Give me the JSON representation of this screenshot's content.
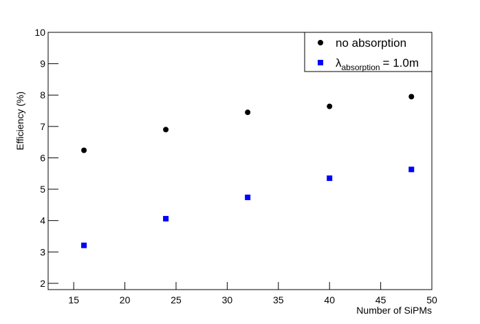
{
  "chart_data": {
    "type": "scatter",
    "x_label": "Number of SiPMs",
    "y_label": "Efficiency (%)",
    "xlim": [
      12.5,
      50
    ],
    "ylim": [
      1.8,
      10
    ],
    "xticks": [
      15,
      20,
      25,
      30,
      35,
      40,
      45,
      50
    ],
    "yticks": [
      2,
      3,
      4,
      5,
      6,
      7,
      8,
      9,
      10
    ],
    "legend": "top-right",
    "series": [
      {
        "name": [
          "no absorption"
        ],
        "color": "#000000",
        "marker": "circle",
        "x": [
          16,
          24,
          32,
          40,
          48
        ],
        "values": [
          6.24,
          6.9,
          7.45,
          7.64,
          7.95
        ]
      },
      {
        "name": [
          "λ",
          "absorption",
          "= 1.0m"
        ],
        "color": "#0000ff",
        "marker": "square",
        "x": [
          16,
          24,
          32,
          40,
          48
        ],
        "values": [
          3.21,
          4.06,
          4.74,
          5.35,
          5.63
        ]
      }
    ]
  }
}
